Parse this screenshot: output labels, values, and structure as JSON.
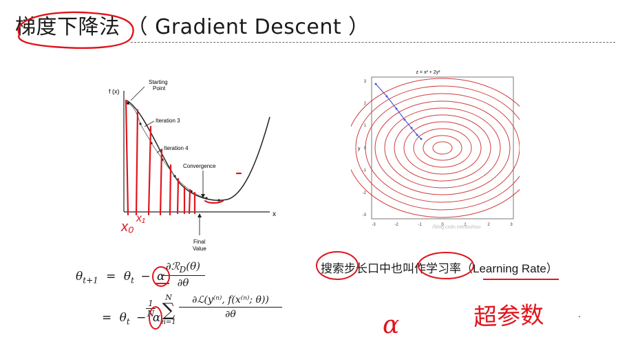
{
  "slide": {
    "title": "梯度下降法 （ Gradient Descent ）"
  },
  "left_figure": {
    "y_axis_label": "f (x)",
    "x_axis_label": "x",
    "annotations": {
      "starting_point": "Starting Point",
      "iteration3": "Iteration 3",
      "iteration4": "Iteration 4",
      "convergence": "Convergence",
      "final_value": "Final Value"
    },
    "handwritten": {
      "x0": "x₀",
      "x1": "x₁"
    }
  },
  "right_figure": {
    "title": "z = x² + 2y²",
    "y_axis_label": "y",
    "x_ticks": [
      "-3",
      "-2",
      "-1",
      "0",
      "1",
      "2",
      "3"
    ],
    "y_ticks": [
      "3",
      "2",
      "1",
      "0",
      "-1",
      "-2",
      "-3"
    ],
    "watermark": "//blog.csdn.net/bozhou"
  },
  "formula": {
    "line1_lhs": "θ",
    "line1_lhs_sub": "t+1",
    "eq": "=",
    "theta": "θ",
    "sub_t": "t",
    "minus": "−",
    "alpha": "α",
    "frac1_num": "∂ℛ",
    "frac1_num_sub": "D",
    "frac1_num_arg": "(θ)",
    "frac1_den": "∂θ",
    "frac2_num": "1",
    "frac2_den": "N",
    "sum_top": "N",
    "sum_bottom": "n=1",
    "sum_symbol": "∑",
    "frac3_num": "∂ℒ(y⁽ⁿ⁾, f(x⁽ⁿ⁾; θ))",
    "frac3_den": "∂θ"
  },
  "note": {
    "text_cn": "搜索步长口中也叫作学习率",
    "text_en": "（Learning Rate）",
    "handwritten_1": "超参数",
    "handwritten_2": "α"
  },
  "colors": {
    "ink_red": "#e0141c",
    "contour_red": "#d23a3a",
    "path_blue": "#4a5ad6",
    "text": "#1a1a1a"
  }
}
